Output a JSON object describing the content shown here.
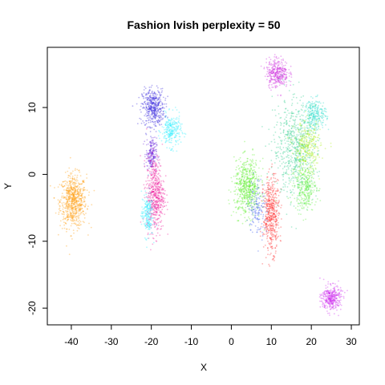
{
  "chart_data": {
    "type": "scatter",
    "title": "Fashion lvish perplexity = 50",
    "xlabel": "X",
    "ylabel": "Y",
    "xlim": [
      -46,
      32
    ],
    "ylim": [
      -22.5,
      19
    ],
    "xticks": [
      -40,
      -30,
      -20,
      -10,
      0,
      10,
      20,
      30
    ],
    "yticks": [
      -20,
      -10,
      0,
      10
    ],
    "xtick_labels": [
      "-40",
      "-30",
      "-20",
      "-10",
      "0",
      "10",
      "20",
      "30"
    ],
    "ytick_labels": [
      "-20",
      "-10",
      "0",
      "10"
    ],
    "grid": false,
    "legend": "none",
    "clusters": [
      {
        "color": "#ff9900",
        "center": [
          -39.5,
          -4
        ],
        "spread": [
          3.0,
          3.6
        ],
        "count": 700
      },
      {
        "color": "#3322dd",
        "center": [
          -19.5,
          10
        ],
        "spread": [
          2.5,
          2.5
        ],
        "count": 450
      },
      {
        "color": "#22eeff",
        "center": [
          -15,
          6.5
        ],
        "spread": [
          2.2,
          2.2
        ],
        "count": 250
      },
      {
        "color": "#6622dd",
        "center": [
          -20,
          3
        ],
        "spread": [
          1.2,
          2.2
        ],
        "count": 200
      },
      {
        "color": "#ee1199",
        "center": [
          -19,
          -3
        ],
        "spread": [
          2.0,
          5.0
        ],
        "count": 550
      },
      {
        "color": "#22eeff",
        "center": [
          -21,
          -6
        ],
        "spread": [
          1.3,
          3.0
        ],
        "count": 200
      },
      {
        "color": "#cc22dd",
        "center": [
          11.5,
          15.2
        ],
        "spread": [
          2.5,
          2.0
        ],
        "count": 350
      },
      {
        "color": "#55ee22",
        "center": [
          4,
          -2
        ],
        "spread": [
          3.0,
          3.8
        ],
        "count": 600
      },
      {
        "color": "#ff2222",
        "center": [
          10,
          -6
        ],
        "spread": [
          1.8,
          5.0
        ],
        "count": 500
      },
      {
        "color": "#3355ee",
        "center": [
          6.5,
          -5
        ],
        "spread": [
          2.0,
          4.0
        ],
        "count": 150
      },
      {
        "color": "#22cc88",
        "center": [
          16,
          4
        ],
        "spread": [
          5.0,
          6.5
        ],
        "count": 650
      },
      {
        "color": "#aaee11",
        "center": [
          19,
          4
        ],
        "spread": [
          3.0,
          3.5
        ],
        "count": 300
      },
      {
        "color": "#22ddcc",
        "center": [
          21,
          9
        ],
        "spread": [
          2.5,
          2.0
        ],
        "count": 250
      },
      {
        "color": "#55ee33",
        "center": [
          18.5,
          -2
        ],
        "spread": [
          2.5,
          3.0
        ],
        "count": 300
      },
      {
        "color": "#cc22ee",
        "center": [
          25,
          -18.5
        ],
        "spread": [
          2.2,
          1.7
        ],
        "count": 350
      }
    ]
  }
}
